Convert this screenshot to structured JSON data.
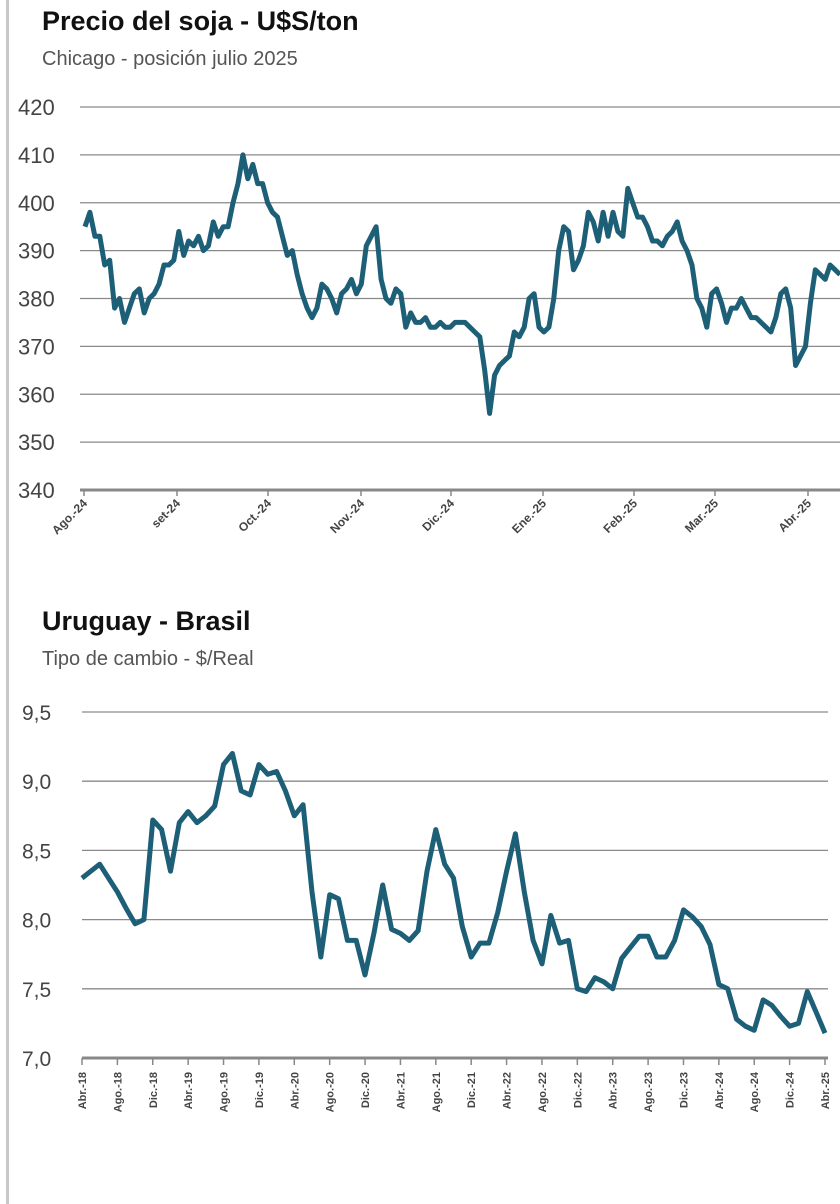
{
  "chart_data": [
    {
      "type": "line",
      "title": "Precio del soja - U$S/ton",
      "subtitle": "Chicago - posición julio 2025",
      "xlabel": "",
      "ylabel": "",
      "ylim": [
        340,
        420
      ],
      "yticks": [
        "420",
        "410",
        "400",
        "390",
        "380",
        "370",
        "360",
        "350",
        "340"
      ],
      "ytick_values": [
        420,
        410,
        400,
        390,
        380,
        370,
        360,
        350,
        340
      ],
      "xtick_labels": [
        "Ago.-24",
        "set-24",
        "Oct.-24",
        "Nov.-24",
        "Dic.-24",
        "Ene.-25",
        "Feb.-25",
        "Mar.-25",
        "Abr.-25"
      ],
      "x_range_months": [
        0,
        8.4
      ],
      "series": [
        {
          "name": "Soja",
          "color": "#1e5f78",
          "values": [
            395,
            398,
            393,
            393,
            387,
            388,
            378,
            380,
            375,
            378,
            381,
            382,
            377,
            380,
            381,
            383,
            387,
            387,
            388,
            394,
            389,
            392,
            391,
            393,
            390,
            391,
            396,
            393,
            395,
            395,
            400,
            404,
            410,
            405,
            408,
            404,
            404,
            400,
            398,
            397,
            393,
            389,
            390,
            385,
            381,
            378,
            376,
            378,
            383,
            382,
            380,
            377,
            381,
            382,
            384,
            381,
            383,
            391,
            393,
            395,
            384,
            380,
            379,
            382,
            381,
            374,
            377,
            375,
            375,
            376,
            374,
            374,
            375,
            374,
            374,
            375,
            375,
            375,
            374,
            373,
            372,
            365,
            356,
            364,
            366,
            367,
            368,
            373,
            372,
            374,
            380,
            381,
            374,
            373,
            374,
            380,
            390,
            395,
            394,
            386,
            388,
            391,
            398,
            396,
            392,
            398,
            393,
            398,
            394,
            393,
            403,
            400,
            397,
            397,
            395,
            392,
            392,
            391,
            393,
            394,
            396,
            392,
            390,
            387,
            380,
            378,
            374,
            381,
            382,
            379,
            375,
            378,
            378,
            380,
            378,
            376,
            376,
            375,
            374,
            373,
            376,
            381,
            382,
            378,
            366,
            368,
            370,
            379,
            386,
            385,
            384,
            387,
            386,
            385
          ]
        }
      ]
    },
    {
      "type": "line",
      "title": "Uruguay - Brasil",
      "subtitle": "Tipo de cambio - $/Real",
      "xlabel": "",
      "ylabel": "",
      "ylim": [
        7.0,
        9.5
      ],
      "yticks": [
        "9,5",
        "9,0",
        "8,5",
        "8,0",
        "7,5",
        "7,0"
      ],
      "ytick_values": [
        9.5,
        9.0,
        8.5,
        8.0,
        7.5,
        7.0
      ],
      "xtick_labels": [
        "Abr.-18",
        "Ago.-18",
        "Dic.-18",
        "Abr.-19",
        "Ago.-19",
        "Dic.-19",
        "Abr.-20",
        "Ago.-20",
        "Dic.-20",
        "Abr.-21",
        "Ago.-21",
        "Dic.-21",
        "Abr.-22",
        "Ago.-22",
        "Dic.-22",
        "Abr.-23",
        "Ago.-23",
        "Dic.-23",
        "Abr.-24",
        "Ago.-24",
        "Dic.-24",
        "Abr.-25"
      ],
      "series": [
        {
          "name": "$/Real",
          "color": "#1e5f78",
          "values": [
            8.3,
            8.35,
            8.4,
            8.3,
            8.2,
            8.08,
            7.97,
            8.0,
            8.72,
            8.65,
            8.35,
            8.7,
            8.78,
            8.7,
            8.75,
            8.82,
            9.12,
            9.2,
            8.93,
            8.9,
            9.12,
            9.05,
            9.07,
            8.93,
            8.75,
            8.83,
            8.2,
            7.73,
            8.18,
            8.15,
            7.85,
            7.85,
            7.6,
            7.9,
            8.25,
            7.93,
            7.9,
            7.85,
            7.92,
            8.35,
            8.65,
            8.4,
            8.3,
            7.95,
            7.73,
            7.83,
            7.83,
            8.05,
            8.35,
            8.62,
            8.2,
            7.85,
            7.68,
            8.03,
            7.83,
            7.85,
            7.5,
            7.48,
            7.58,
            7.55,
            7.5,
            7.72,
            7.8,
            7.88,
            7.88,
            7.73,
            7.73,
            7.85,
            8.07,
            8.02,
            7.95,
            7.82,
            7.53,
            7.5,
            7.28,
            7.23,
            7.2,
            7.42,
            7.38,
            7.3,
            7.23,
            7.25,
            7.48,
            7.33,
            7.18
          ]
        }
      ]
    }
  ]
}
